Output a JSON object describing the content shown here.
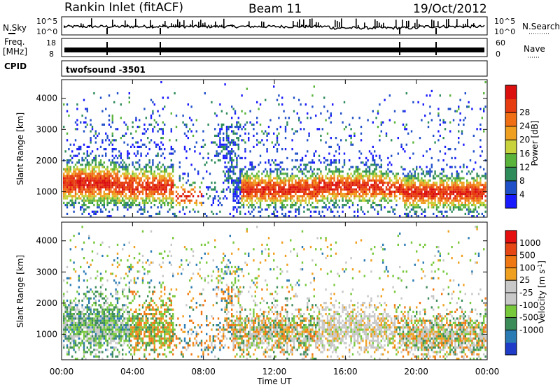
{
  "header": {
    "station": "Rankin Inlet (fitACF)",
    "beam": "Beam 11",
    "date": "19/Oct/2012"
  },
  "strip_labels": {
    "nsky": "N.Sky",
    "nsearch": "N.Search",
    "freq": "Freq.",
    "freq_unit": "[MHz]",
    "nave": "Nave",
    "cpid": "CPID",
    "program": "twofsound -3501"
  },
  "strip_ticks": {
    "noise_left": [
      "10^5",
      "10^0"
    ],
    "noise_right": [
      "10^5",
      "10^0"
    ],
    "freq_left": [
      "18",
      "8"
    ],
    "nave_right": [
      "60",
      "0"
    ]
  },
  "chart_data": [
    {
      "type": "heatmap",
      "name": "power",
      "ylabel": "Slant Range [km]",
      "y_ticks": [
        "1000",
        "2000",
        "3000",
        "4000"
      ],
      "ylim": [
        180,
        4600
      ],
      "colorbar_label": "Power [dB]",
      "colorbar_ticks": [
        "4",
        "8",
        "12",
        "16",
        "20",
        "24",
        "28"
      ],
      "colorbar_colors": [
        "#1a1aff",
        "#2050c8",
        "#2e8c5a",
        "#5ab43c",
        "#c8d23c",
        "#f0a020",
        "#f06e14",
        "#e63c0f",
        "#dc0f0f"
      ]
    },
    {
      "type": "heatmap",
      "name": "velocity",
      "ylabel": "Slant Range [km]",
      "y_ticks": [
        "1000",
        "2000",
        "3000",
        "4000"
      ],
      "ylim": [
        180,
        4600
      ],
      "colorbar_label": "Velocity [m s^-1]",
      "colorbar_ticks": [
        "1000",
        "500",
        "100",
        "25",
        "-25",
        "-100",
        "-500",
        "-1000"
      ],
      "colorbar_colors": [
        "#1e3cc8",
        "#2a7ab4",
        "#3c8c5a",
        "#78c83c",
        "#c8c8c8",
        "#c8c8c8",
        "#f0a020",
        "#f07814",
        "#e64614",
        "#e60f0f"
      ],
      "x_ticks": [
        "00:00",
        "04:00",
        "08:00",
        "12:00",
        "16:00",
        "20:00",
        "00:00"
      ],
      "xlabel": "Time UT"
    }
  ]
}
